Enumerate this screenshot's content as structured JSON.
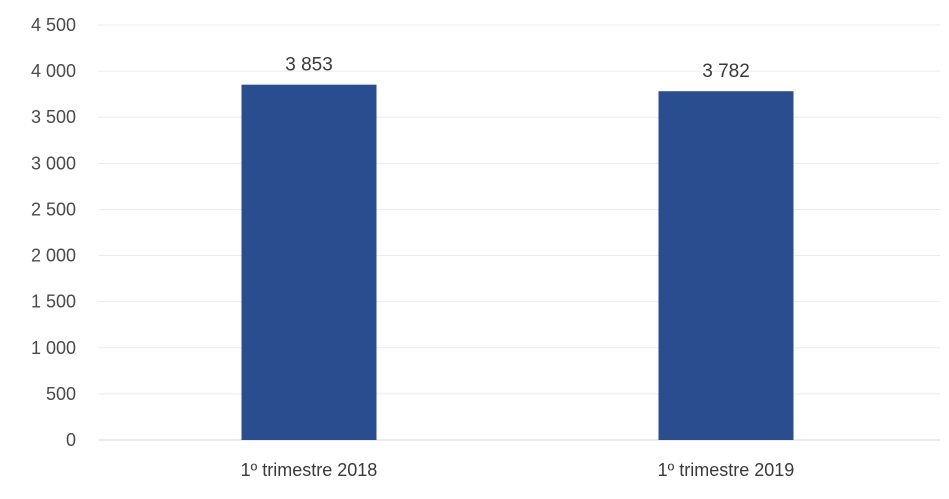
{
  "chart_data": {
    "type": "bar",
    "categories": [
      "1º trimestre 2018",
      "1º trimestre 2019"
    ],
    "values": [
      3853,
      3782
    ],
    "data_labels": [
      "3 853",
      "3 782"
    ],
    "title": "",
    "xlabel": "",
    "ylabel": "",
    "ylim": [
      0,
      4500
    ],
    "yticks": [
      0,
      500,
      1000,
      1500,
      2000,
      2500,
      3000,
      3500,
      4000,
      4500
    ],
    "ytick_labels": [
      "0",
      "500",
      "1 000",
      "1 500",
      "2 000",
      "2 500",
      "3 000",
      "3 500",
      "4 000",
      "4 500"
    ],
    "grid": true,
    "legend": "none",
    "bar_color": "#2a4d8f"
  }
}
